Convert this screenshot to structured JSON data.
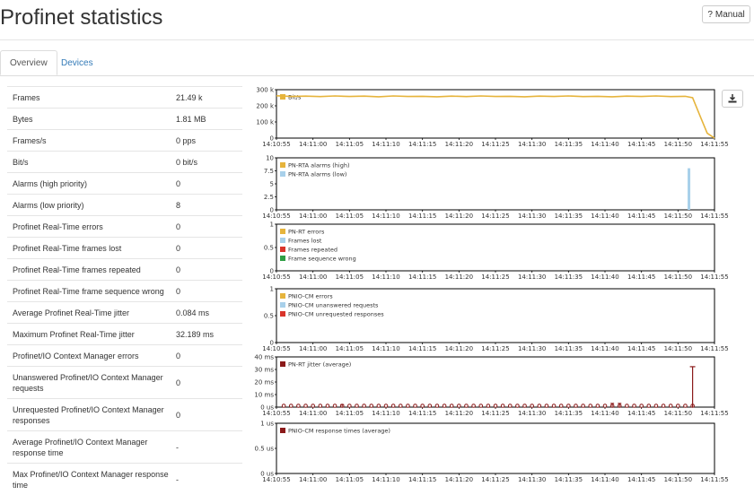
{
  "title": "Profinet statistics",
  "manual_label": "Manual",
  "tabs": [
    "Overview",
    "Devices"
  ],
  "stats": [
    {
      "label": "Frames",
      "value": "21.49 k"
    },
    {
      "label": "Bytes",
      "value": "1.81 MB"
    },
    {
      "label": "Frames/s",
      "value": "0 pps"
    },
    {
      "label": "Bit/s",
      "value": "0 bit/s"
    },
    {
      "label": "Alarms (high priority)",
      "value": "0"
    },
    {
      "label": "Alarms (low priority)",
      "value": "8"
    },
    {
      "label": "Profinet Real-Time errors",
      "value": "0"
    },
    {
      "label": "Profinet Real-Time frames lost",
      "value": "0"
    },
    {
      "label": "Profinet Real-Time frames repeated",
      "value": "0"
    },
    {
      "label": "Profinet Real-Time frame sequence wrong",
      "value": "0"
    },
    {
      "label": "Average Profinet Real-Time jitter",
      "value": "0.084 ms"
    },
    {
      "label": "Maximum Profinet Real-Time jitter",
      "value": "32.189 ms"
    },
    {
      "label": "Profinet/IO Context Manager errors",
      "value": "0"
    },
    {
      "label": "Unanswered Profinet/IO Context Manager requests",
      "value": "0"
    },
    {
      "label": "Unrequested Profinet/IO Context Manager responses",
      "value": "0"
    },
    {
      "label": "Average Profinet/IO Context Manager response time",
      "value": "-"
    },
    {
      "label": "Max Profinet/IO Context Manager response time",
      "value": "-"
    }
  ],
  "chart_data": [
    {
      "type": "line",
      "x": [
        "14:10:55",
        "14:11:00",
        "14:11:05",
        "14:11:10",
        "14:11:15",
        "14:11:20",
        "14:11:25",
        "14:11:30",
        "14:11:35",
        "14:11:40",
        "14:11:45",
        "14:11:50",
        "14:11:55"
      ],
      "yticks": [
        "300 k",
        "200 k",
        "100 k",
        "0"
      ],
      "ylim": [
        0,
        300000
      ],
      "series": [
        {
          "name": "Bit/s",
          "color": "#e6b43c",
          "points": [
            [
              0,
              262000
            ],
            [
              2,
              258000
            ],
            [
              4,
              260000
            ],
            [
              6,
              257000
            ],
            [
              8,
              261000
            ],
            [
              10,
              258000
            ],
            [
              12,
              260000
            ],
            [
              14,
              256000
            ],
            [
              16,
              261000
            ],
            [
              18,
              258000
            ],
            [
              20,
              259000
            ],
            [
              22,
              256000
            ],
            [
              24,
              260000
            ],
            [
              26,
              257000
            ],
            [
              28,
              261000
            ],
            [
              30,
              258000
            ],
            [
              32,
              259000
            ],
            [
              34,
              256000
            ],
            [
              36,
              260000
            ],
            [
              38,
              258000
            ],
            [
              40,
              261000
            ],
            [
              42,
              257000
            ],
            [
              44,
              259000
            ],
            [
              46,
              256000
            ],
            [
              48,
              260000
            ],
            [
              50,
              258000
            ],
            [
              52,
              261000
            ],
            [
              54,
              257000
            ],
            [
              56,
              259000
            ],
            [
              57,
              250000
            ],
            [
              58,
              140000
            ],
            [
              59,
              30000
            ],
            [
              60,
              0
            ]
          ]
        }
      ]
    },
    {
      "type": "bar",
      "x": [
        "14:10:55",
        "14:11:00",
        "14:11:05",
        "14:11:10",
        "14:11:15",
        "14:11:20",
        "14:11:25",
        "14:11:30",
        "14:11:35",
        "14:11:40",
        "14:11:45",
        "14:11:50",
        "14:11:55"
      ],
      "yticks": [
        "10",
        "7.5",
        "5",
        "2.5",
        "0"
      ],
      "ylim": [
        0,
        10
      ],
      "series": [
        {
          "name": "PN-RTA alarms (high)",
          "color": "#e6b43c",
          "points": []
        },
        {
          "name": "PN-RTA alarms (low)",
          "color": "#a8d0ea",
          "points": [
            [
              56.5,
              8
            ]
          ]
        }
      ]
    },
    {
      "type": "line",
      "x": [
        "14:10:55",
        "14:11:00",
        "14:11:05",
        "14:11:10",
        "14:11:15",
        "14:11:20",
        "14:11:25",
        "14:11:30",
        "14:11:35",
        "14:11:40",
        "14:11:45",
        "14:11:50",
        "14:11:55"
      ],
      "yticks": [
        "1",
        "0.5",
        "0"
      ],
      "ylim": [
        0,
        1
      ],
      "series": [
        {
          "name": "PN-RT errors",
          "color": "#e6b43c"
        },
        {
          "name": "Frames lost",
          "color": "#a8d0ea"
        },
        {
          "name": "Frames repeated",
          "color": "#d9342b"
        },
        {
          "name": "Frame sequence wrong",
          "color": "#2e9e44"
        }
      ]
    },
    {
      "type": "line",
      "x": [
        "14:10:55",
        "14:11:00",
        "14:11:05",
        "14:11:10",
        "14:11:15",
        "14:11:20",
        "14:11:25",
        "14:11:30",
        "14:11:35",
        "14:11:40",
        "14:11:45",
        "14:11:50",
        "14:11:55"
      ],
      "yticks": [
        "1",
        "0.5",
        "0"
      ],
      "ylim": [
        0,
        1
      ],
      "series": [
        {
          "name": "PNIO-CM errors",
          "color": "#e6b43c"
        },
        {
          "name": "PNIO-CM unanswered requests",
          "color": "#a8d0ea"
        },
        {
          "name": "PNIO-CM unrequested responses",
          "color": "#d9342b"
        }
      ]
    },
    {
      "type": "scatter",
      "x": [
        "14:10:55",
        "14:11:00",
        "14:11:05",
        "14:11:10",
        "14:11:15",
        "14:11:20",
        "14:11:25",
        "14:11:30",
        "14:11:35",
        "14:11:40",
        "14:11:45",
        "14:11:50",
        "14:11:55"
      ],
      "yticks": [
        "40 ms",
        "30 ms",
        "20 ms",
        "10 ms",
        "0 us"
      ],
      "ylim": [
        0,
        40
      ],
      "series": [
        {
          "name": "PN-RT jitter (average)",
          "color": "#8b1a1a",
          "every": 1,
          "max_error": [
            57,
            32.2
          ],
          "small_errors": [
            [
              9,
              2
            ],
            [
              46,
              3
            ],
            [
              47,
              3
            ]
          ]
        }
      ]
    },
    {
      "type": "line",
      "x": [
        "14:10:55",
        "14:11:00",
        "14:11:05",
        "14:11:10",
        "14:11:15",
        "14:11:20",
        "14:11:25",
        "14:11:30",
        "14:11:35",
        "14:11:40",
        "14:11:45",
        "14:11:50",
        "14:11:55"
      ],
      "yticks": [
        "1 us",
        "0.5 us",
        "0 us"
      ],
      "ylim": [
        0,
        1
      ],
      "series": [
        {
          "name": "PNIO-CM response times (average)",
          "color": "#8b1a1a"
        }
      ]
    }
  ]
}
